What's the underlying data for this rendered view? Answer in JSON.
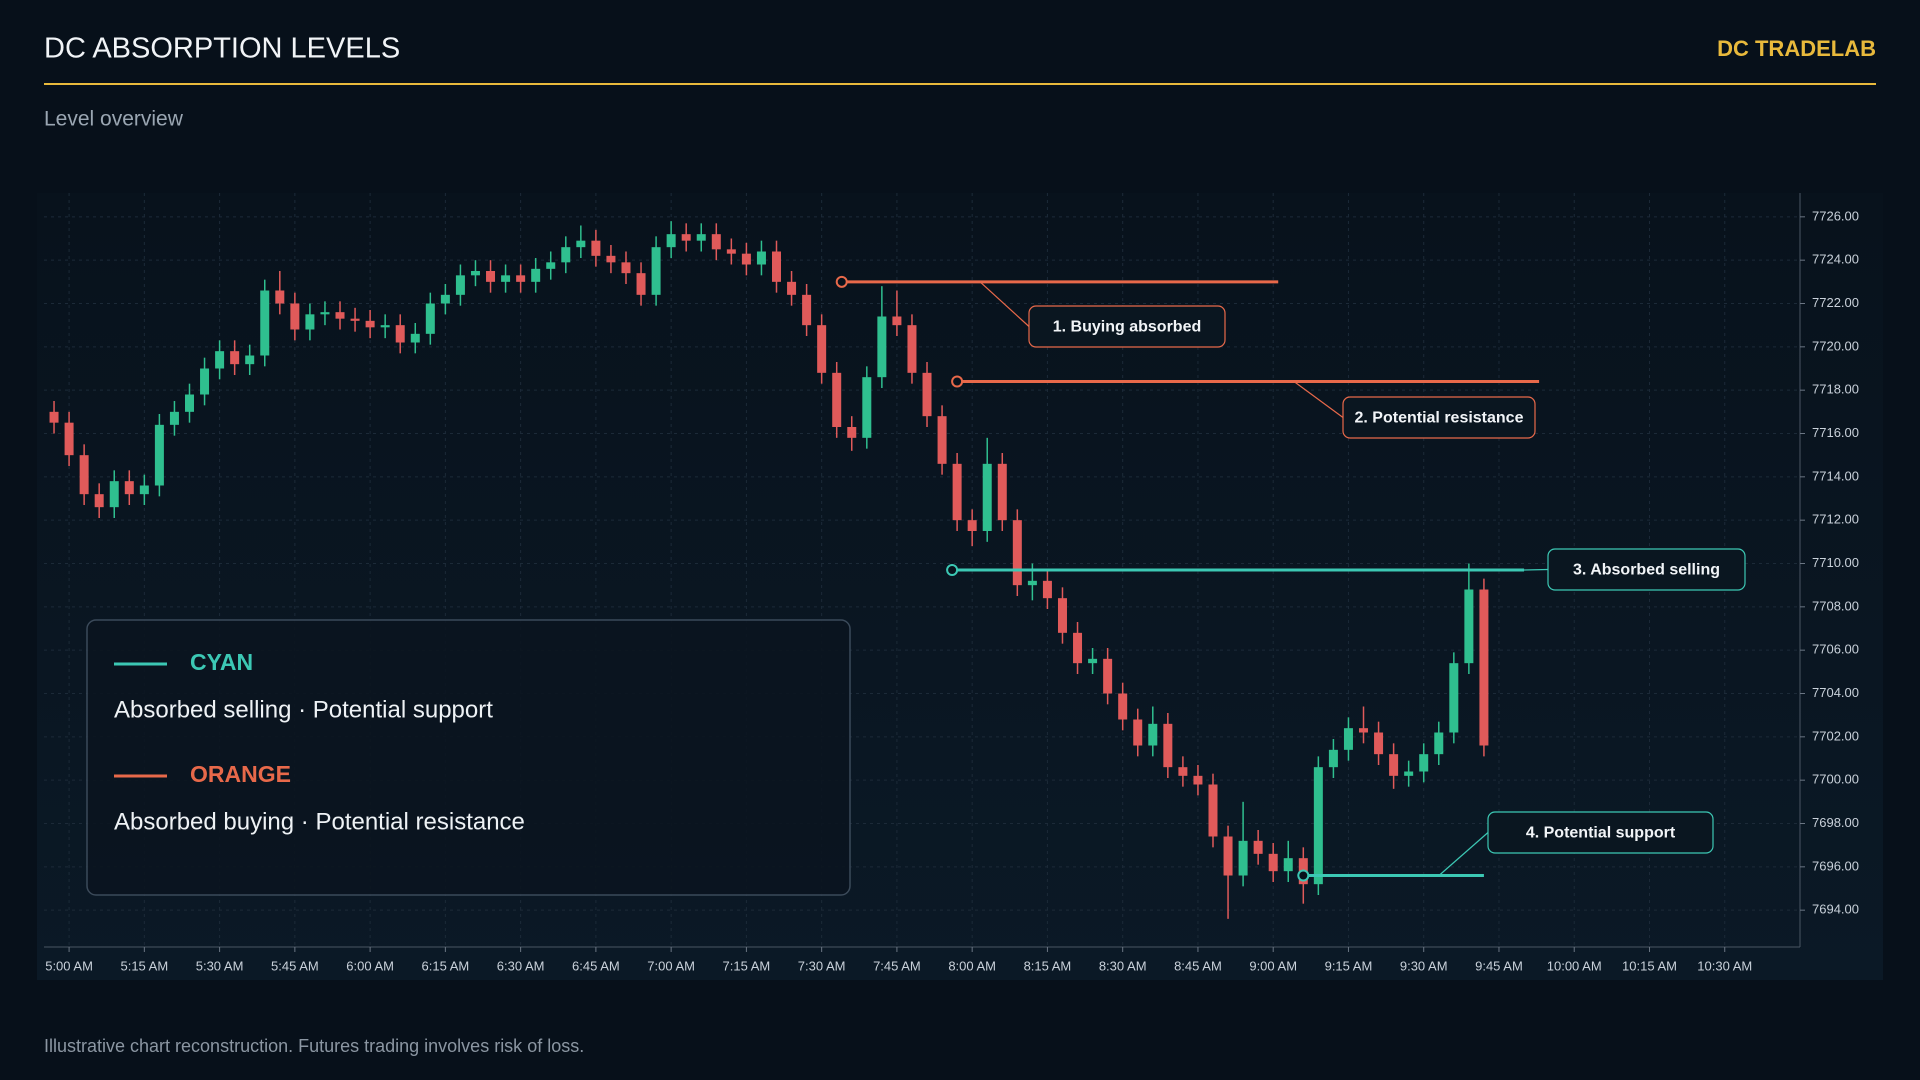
{
  "header": {
    "title": "DC ABSORPTION LEVELS",
    "brand": "DC TRADELAB",
    "subtitle": "Level overview"
  },
  "footer": "Illustrative chart reconstruction. Futures trading involves risk of loss.",
  "chart_data": {
    "type": "candlestick",
    "up_color": "#2fbf8f",
    "down_color": "#e05a5a",
    "grid": true,
    "x": [
      "4:57 AM",
      "5:00 AM",
      "5:03 AM",
      "5:06 AM",
      "5:09 AM",
      "5:12 AM",
      "5:15 AM",
      "5:18 AM",
      "5:21 AM",
      "5:24 AM",
      "5:27 AM",
      "5:30 AM",
      "5:33 AM",
      "5:36 AM",
      "5:39 AM",
      "5:42 AM",
      "5:45 AM",
      "5:48 AM",
      "5:51 AM",
      "5:54 AM",
      "5:57 AM",
      "6:00 AM",
      "6:03 AM",
      "6:06 AM",
      "6:09 AM",
      "6:12 AM",
      "6:15 AM",
      "6:18 AM",
      "6:21 AM",
      "6:24 AM",
      "6:27 AM",
      "6:30 AM",
      "6:33 AM",
      "6:36 AM",
      "6:39 AM",
      "6:42 AM",
      "6:45 AM",
      "6:48 AM",
      "6:51 AM",
      "6:54 AM",
      "6:57 AM",
      "7:00 AM",
      "7:03 AM",
      "7:06 AM",
      "7:09 AM",
      "7:12 AM",
      "7:15 AM",
      "7:18 AM",
      "7:21 AM",
      "7:24 AM",
      "7:27 AM",
      "7:30 AM",
      "7:33 AM",
      "7:36 AM",
      "7:39 AM",
      "7:42 AM",
      "7:45 AM",
      "7:48 AM",
      "7:51 AM",
      "7:54 AM",
      "7:57 AM",
      "8:00 AM",
      "8:03 AM",
      "8:06 AM",
      "8:09 AM",
      "8:12 AM",
      "8:15 AM",
      "8:18 AM",
      "8:21 AM",
      "8:24 AM",
      "8:27 AM",
      "8:30 AM",
      "8:33 AM",
      "8:36 AM",
      "8:39 AM",
      "8:42 AM",
      "8:45 AM",
      "8:48 AM",
      "8:51 AM",
      "8:54 AM",
      "8:57 AM",
      "9:00 AM",
      "9:03 AM",
      "9:06 AM",
      "9:09 AM",
      "9:12 AM",
      "9:15 AM",
      "9:18 AM",
      "9:21 AM",
      "9:24 AM",
      "9:27 AM",
      "9:30 AM",
      "9:33 AM",
      "9:36 AM",
      "9:39 AM",
      "9:42 AM"
    ],
    "open": [
      7717.0,
      7716.5,
      7715.0,
      7713.2,
      7712.6,
      7713.8,
      7713.2,
      7713.6,
      7716.4,
      7717.0,
      7717.8,
      7719.0,
      7719.8,
      7719.2,
      7719.6,
      7722.6,
      7722.0,
      7720.8,
      7721.5,
      7721.6,
      7721.3,
      7721.2,
      7720.9,
      7721.0,
      7720.2,
      7720.6,
      7722.0,
      7722.4,
      7723.3,
      7723.5,
      7723.0,
      7723.3,
      7723.0,
      7723.6,
      7723.9,
      7724.6,
      7724.9,
      7724.2,
      7723.9,
      7723.4,
      7722.4,
      7724.6,
      7725.2,
      7724.9,
      7725.2,
      7724.5,
      7724.3,
      7723.8,
      7724.4,
      7723.0,
      7722.4,
      7721.0,
      7718.8,
      7716.3,
      7715.8,
      7718.6,
      7721.4,
      7721.0,
      7718.8,
      7716.8,
      7714.6,
      7712.0,
      7711.5,
      7714.6,
      7712.0,
      7709.0,
      7709.2,
      7708.4,
      7706.8,
      7705.4,
      7705.6,
      7704.0,
      7702.8,
      7701.6,
      7702.6,
      7700.6,
      7700.2,
      7699.8,
      7697.4,
      7695.6,
      7697.2,
      7696.6,
      7695.8,
      7696.4,
      7695.2,
      7700.6,
      7701.4,
      7702.4,
      7702.2,
      7701.2,
      7700.2,
      7700.4,
      7701.2,
      7702.2,
      7705.4,
      7708.8
    ],
    "high": [
      7717.5,
      7717.0,
      7715.5,
      7713.7,
      7714.3,
      7714.3,
      7714.1,
      7716.9,
      7717.5,
      7718.3,
      7719.5,
      7720.3,
      7720.3,
      7720.1,
      7723.1,
      7723.5,
      7722.5,
      7722.0,
      7722.1,
      7722.1,
      7721.8,
      7721.7,
      7721.5,
      7721.5,
      7721.1,
      7722.5,
      7722.9,
      7723.8,
      7724.0,
      7724.0,
      7723.8,
      7723.8,
      7724.1,
      7724.4,
      7725.1,
      7725.6,
      7725.4,
      7724.7,
      7724.4,
      7723.9,
      7725.1,
      7725.8,
      7725.7,
      7725.7,
      7725.7,
      7725.0,
      7724.8,
      7724.9,
      7724.9,
      7723.5,
      7722.9,
      7721.5,
      7719.3,
      7716.8,
      7719.1,
      7722.8,
      7722.6,
      7721.5,
      7719.3,
      7717.3,
      7715.1,
      7712.5,
      7715.8,
      7715.1,
      7712.5,
      7710.0,
      7709.7,
      7708.9,
      7707.3,
      7706.1,
      7706.1,
      7704.5,
      7703.3,
      7703.4,
      7703.1,
      7701.1,
      7700.7,
      7700.3,
      7697.9,
      7699.0,
      7697.7,
      7697.1,
      7697.2,
      7696.9,
      7701.1,
      7701.9,
      7702.9,
      7703.4,
      7702.7,
      7701.7,
      7700.9,
      7701.7,
      7702.7,
      7705.9,
      7710.0,
      7709.3
    ],
    "low": [
      7716.0,
      7714.5,
      7712.7,
      7712.1,
      7712.1,
      7712.7,
      7712.7,
      7713.1,
      7715.9,
      7716.5,
      7717.3,
      7718.5,
      7718.7,
      7718.7,
      7719.1,
      7721.5,
      7720.3,
      7720.3,
      7721.0,
      7720.8,
      7720.7,
      7720.4,
      7720.4,
      7719.7,
      7719.7,
      7720.1,
      7721.5,
      7721.9,
      7722.8,
      7722.5,
      7722.5,
      7722.5,
      7722.5,
      7723.1,
      7723.4,
      7724.1,
      7723.7,
      7723.4,
      7722.9,
      7721.9,
      7721.9,
      7724.1,
      7724.4,
      7724.4,
      7724.0,
      7723.8,
      7723.3,
      7723.3,
      7722.5,
      7721.9,
      7720.5,
      7718.3,
      7715.8,
      7715.2,
      7715.3,
      7718.1,
      7720.5,
      7718.3,
      7716.3,
      7714.1,
      7711.5,
      7710.8,
      7711.0,
      7711.5,
      7708.5,
      7708.3,
      7707.9,
      7706.3,
      7704.9,
      7704.9,
      7703.5,
      7702.3,
      7701.1,
      7701.1,
      7700.1,
      7699.7,
      7699.3,
      7696.9,
      7693.6,
      7695.1,
      7696.1,
      7695.3,
      7695.3,
      7694.3,
      7694.7,
      7700.1,
      7700.9,
      7701.7,
      7700.7,
      7699.6,
      7699.7,
      7699.9,
      7700.7,
      7701.7,
      7704.9,
      7701.1
    ],
    "close": [
      7716.5,
      7715.0,
      7713.2,
      7712.6,
      7713.8,
      7713.2,
      7713.6,
      7716.4,
      7717.0,
      7717.8,
      7719.0,
      7719.8,
      7719.2,
      7719.6,
      7722.6,
      7722.0,
      7720.8,
      7721.5,
      7721.6,
      7721.3,
      7721.2,
      7720.9,
      7721.0,
      7720.2,
      7720.6,
      7722.0,
      7722.4,
      7723.3,
      7723.5,
      7723.0,
      7723.3,
      7723.0,
      7723.6,
      7723.9,
      7724.6,
      7724.9,
      7724.2,
      7723.9,
      7723.4,
      7722.4,
      7724.6,
      7725.2,
      7724.9,
      7725.2,
      7724.5,
      7724.3,
      7723.8,
      7724.4,
      7723.0,
      7722.4,
      7721.0,
      7718.8,
      7716.3,
      7715.8,
      7718.6,
      7721.4,
      7721.0,
      7718.8,
      7716.8,
      7714.6,
      7712.0,
      7711.5,
      7714.6,
      7712.0,
      7709.0,
      7709.2,
      7708.4,
      7706.8,
      7705.4,
      7705.6,
      7704.0,
      7702.8,
      7701.6,
      7702.6,
      7700.6,
      7700.2,
      7699.8,
      7697.4,
      7695.6,
      7697.2,
      7696.6,
      7695.8,
      7696.4,
      7695.2,
      7700.6,
      7701.4,
      7702.4,
      7702.2,
      7701.2,
      7700.2,
      7700.4,
      7701.2,
      7702.2,
      7705.4,
      7708.8,
      7701.6
    ],
    "xlim": [
      "4:55 AM",
      "10:45 AM"
    ],
    "xticks": [
      "5:00 AM",
      "5:15 AM",
      "5:30 AM",
      "5:45 AM",
      "6:00 AM",
      "6:15 AM",
      "6:30 AM",
      "6:45 AM",
      "7:00 AM",
      "7:15 AM",
      "7:30 AM",
      "7:45 AM",
      "8:00 AM",
      "8:15 AM",
      "8:30 AM",
      "8:45 AM",
      "9:00 AM",
      "9:15 AM",
      "9:30 AM",
      "9:45 AM",
      "10:00 AM",
      "10:15 AM",
      "10:30 AM"
    ],
    "ylim": [
      7692.3,
      7727.1
    ],
    "yticks": [
      {
        "value": 7694,
        "label": "7694.00"
      },
      {
        "value": 7696,
        "label": "7696.00"
      },
      {
        "value": 7698,
        "label": "7698.00"
      },
      {
        "value": 7700,
        "label": "7700.00"
      },
      {
        "value": 7702,
        "label": "7702.00"
      },
      {
        "value": 7704,
        "label": "7704.00"
      },
      {
        "value": 7706,
        "label": "7706.00"
      },
      {
        "value": 7708,
        "label": "7708.00"
      },
      {
        "value": 7710,
        "label": "7710.00"
      },
      {
        "value": 7712,
        "label": "7712.00"
      },
      {
        "value": 7714,
        "label": "7714.00"
      },
      {
        "value": 7716,
        "label": "7716.00"
      },
      {
        "value": 7718,
        "label": "7718.00"
      },
      {
        "value": 7720,
        "label": "7720.00"
      },
      {
        "value": 7722,
        "label": "7722.00"
      },
      {
        "value": 7724,
        "label": "7724.00"
      },
      {
        "value": 7726,
        "label": "7726.00"
      }
    ],
    "levels": [
      {
        "label": "1. Buying absorbed",
        "value": 7723.0,
        "from": "7:34 AM",
        "to": "9:01 AM",
        "color": "#e8694a"
      },
      {
        "label": "2. Potential resistance",
        "value": 7718.4,
        "from": "7:57 AM",
        "to": "9:53 AM",
        "color": "#e8694a"
      },
      {
        "label": "3. Absorbed selling",
        "value": 7709.7,
        "from": "7:56 AM",
        "to": "9:50 AM",
        "color": "#3cc8b4"
      },
      {
        "label": "4. Potential support",
        "value": 7695.6,
        "from": "9:06 AM",
        "to": "9:42 AM",
        "color": "#3cc8b4"
      }
    ],
    "legend": [
      {
        "name": "CYAN",
        "color": "#3cc8b4",
        "text": "Absorbed selling · Potential support"
      },
      {
        "name": "ORANGE",
        "color": "#e8694a",
        "text": "Absorbed buying · Potential resistance"
      }
    ]
  }
}
